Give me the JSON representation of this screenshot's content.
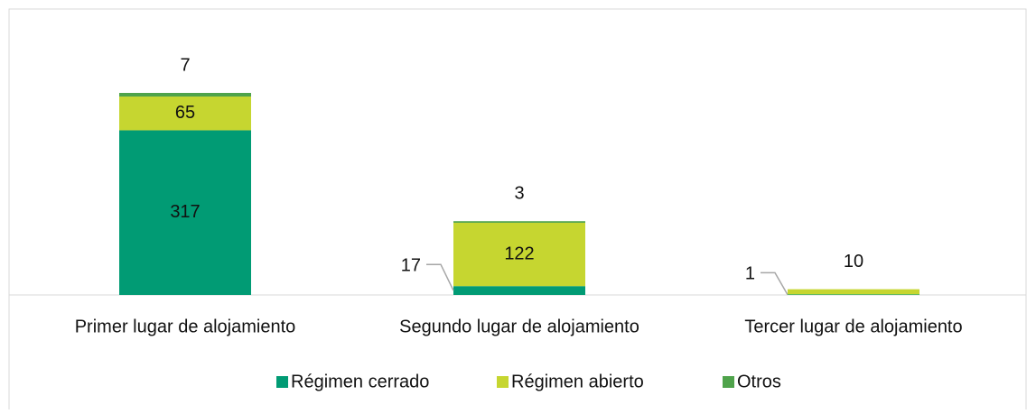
{
  "chart_data": {
    "type": "stacked_bar",
    "categories": [
      "Primer lugar de alojamiento",
      "Segundo lugar de alojamiento",
      "Tercer lugar de alojamiento"
    ],
    "series": [
      {
        "name": "Régimen cerrado",
        "color": "#019b74",
        "values": [
          317,
          17,
          1
        ]
      },
      {
        "name": "Régimen abierto",
        "color": "#c6d630",
        "values": [
          65,
          122,
          10
        ]
      },
      {
        "name": "Otros",
        "color": "#4fa34b",
        "values": [
          7,
          3,
          null
        ]
      }
    ]
  }
}
